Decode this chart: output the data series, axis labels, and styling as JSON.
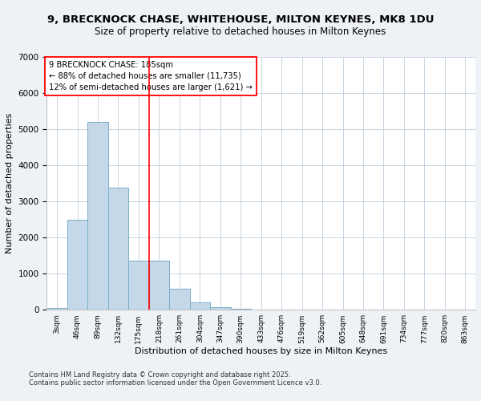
{
  "title": "9, BRECKNOCK CHASE, WHITEHOUSE, MILTON KEYNES, MK8 1DU",
  "subtitle": "Size of property relative to detached houses in Milton Keynes",
  "xlabel": "Distribution of detached houses by size in Milton Keynes",
  "ylabel": "Number of detached properties",
  "footnote1": "Contains HM Land Registry data © Crown copyright and database right 2025.",
  "footnote2": "Contains public sector information licensed under the Open Government Licence v3.0.",
  "categories": [
    "3sqm",
    "46sqm",
    "89sqm",
    "132sqm",
    "175sqm",
    "218sqm",
    "261sqm",
    "304sqm",
    "347sqm",
    "390sqm",
    "433sqm",
    "476sqm",
    "519sqm",
    "562sqm",
    "605sqm",
    "648sqm",
    "691sqm",
    "734sqm",
    "777sqm",
    "820sqm",
    "863sqm"
  ],
  "values": [
    55,
    2500,
    5200,
    3380,
    1350,
    1350,
    590,
    195,
    70,
    28,
    7,
    3,
    2,
    1,
    0,
    0,
    0,
    0,
    0,
    0,
    0
  ],
  "bar_color": "#c5d8ea",
  "bar_edge_color": "#7aaec8",
  "vline_x": 4.5,
  "vline_color": "red",
  "annotation_text": "9 BRECKNOCK CHASE: 185sqm\n← 88% of detached houses are smaller (11,735)\n12% of semi-detached houses are larger (1,621) →",
  "annotation_box_color": "red",
  "ylim": [
    0,
    7000
  ],
  "yticks": [
    0,
    1000,
    2000,
    3000,
    4000,
    5000,
    6000,
    7000
  ],
  "bg_color": "#eef2f7",
  "plot_bg_color": "#ffffff",
  "grid_color": "#c8d4e0"
}
